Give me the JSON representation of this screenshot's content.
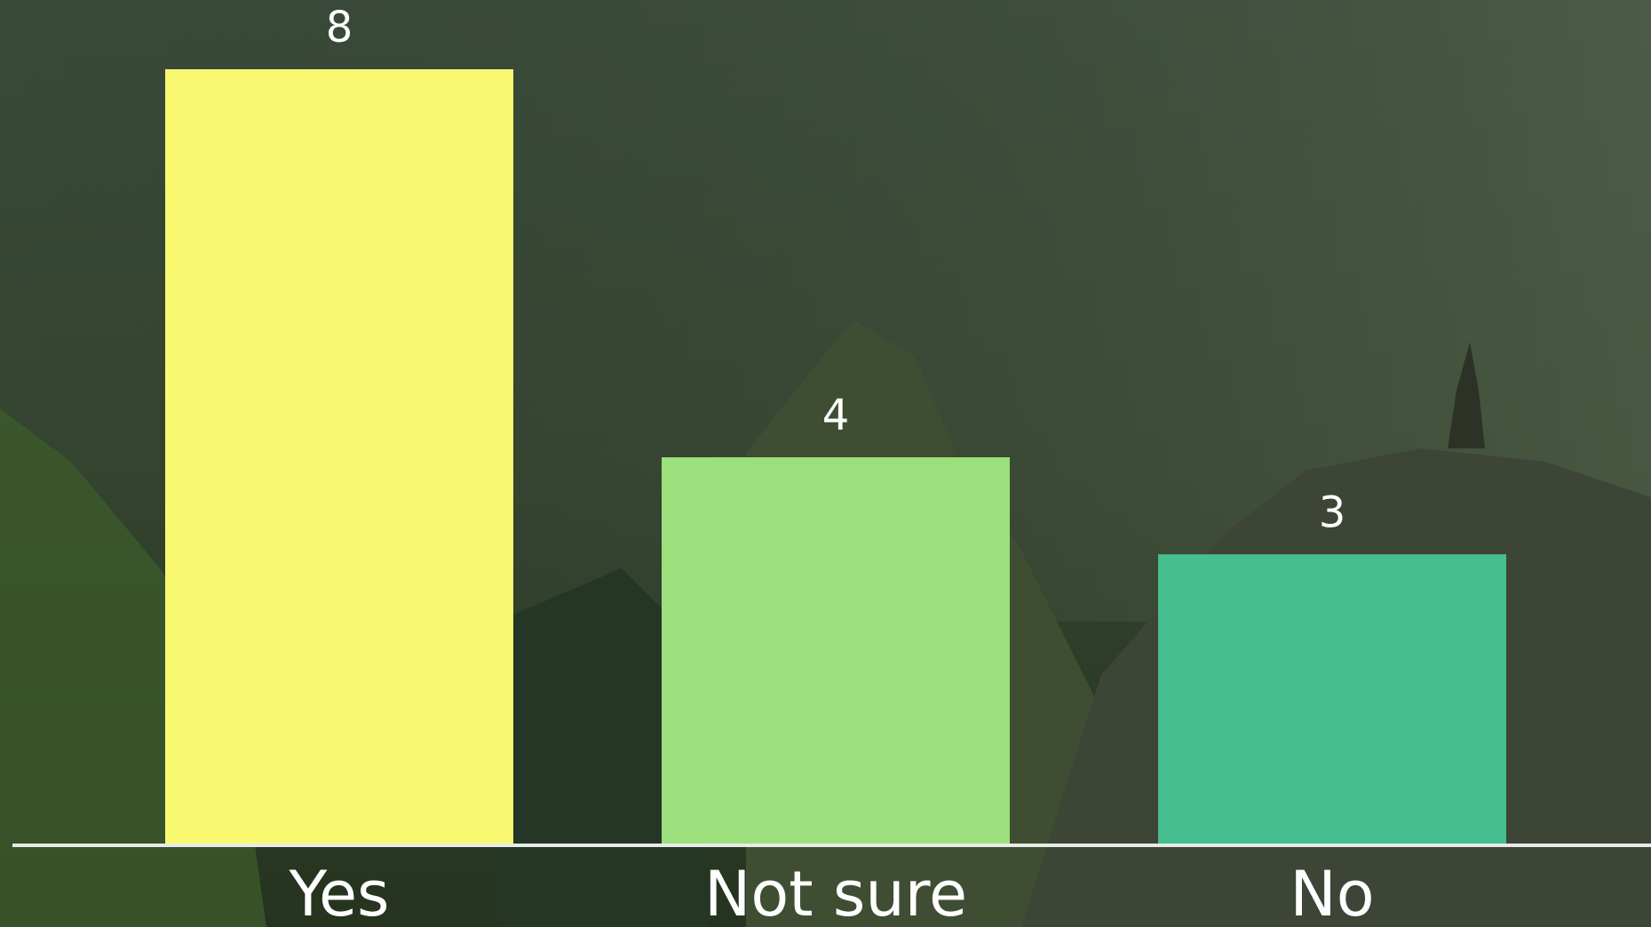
{
  "chart_data": {
    "type": "bar",
    "categories": [
      "Yes",
      "Not sure",
      "No"
    ],
    "values": [
      8,
      4,
      3
    ],
    "colors": [
      "#f9f871",
      "#9be07c",
      "#47be8f"
    ]
  }
}
